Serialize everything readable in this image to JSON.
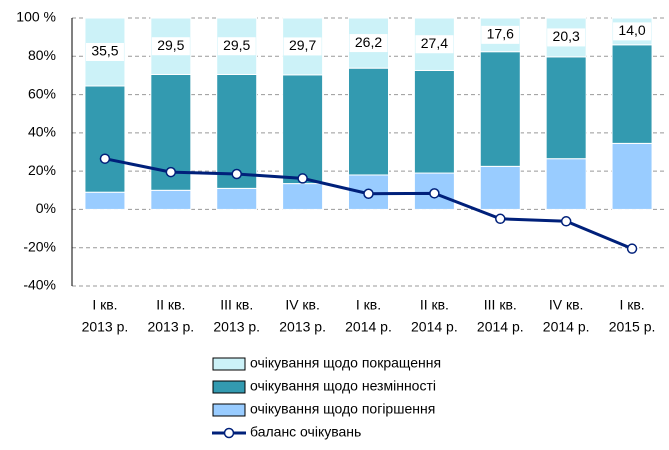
{
  "chart_data": {
    "type": "bar",
    "categories": [
      [
        "I кв.",
        "2013 р."
      ],
      [
        "II кв.",
        "2013 р."
      ],
      [
        "III кв.",
        "2013 р."
      ],
      [
        "IV кв.",
        "2013 р."
      ],
      [
        "I кв.",
        "2014 р."
      ],
      [
        "II кв.",
        "2014 р."
      ],
      [
        "III кв.",
        "2014 р."
      ],
      [
        "IV кв.",
        "2014 р."
      ],
      [
        "I кв.",
        "2015 р."
      ]
    ],
    "series": [
      {
        "name": "очікування щодо погіршення",
        "color": "#99ccff",
        "values": [
          9.0,
          10.0,
          11.0,
          13.5,
          18.0,
          19.0,
          22.5,
          26.5,
          34.5
        ]
      },
      {
        "name": "очікування щодо незмінності",
        "color": "#339ab0",
        "values": [
          55.5,
          60.5,
          59.5,
          56.8,
          55.8,
          53.6,
          59.9,
          53.2,
          51.5
        ]
      },
      {
        "name": "очікування щодо покращення",
        "color": "#ccf2f8",
        "values": [
          35.5,
          29.5,
          29.5,
          29.7,
          26.2,
          27.4,
          17.6,
          20.3,
          14.0
        ],
        "value_labels": [
          "35,5",
          "29,5",
          "29,5",
          "29,7",
          "26,2",
          "27,4",
          "17,6",
          "20,3",
          "14,0"
        ]
      },
      {
        "name": "баланс очікувань",
        "type": "line",
        "color": "#00207a",
        "values": [
          26.5,
          19.5,
          18.5,
          16.2,
          8.2,
          8.4,
          -4.9,
          -6.2,
          -20.5
        ]
      }
    ],
    "ylim": [
      -40,
      100
    ],
    "yticks": [
      {
        "value": -40,
        "label": "-40%"
      },
      {
        "value": -20,
        "label": "-20%"
      },
      {
        "value": 0,
        "label": "0%"
      },
      {
        "value": 20,
        "label": "20%"
      },
      {
        "value": 40,
        "label": "40%"
      },
      {
        "value": 60,
        "label": "60%"
      },
      {
        "value": 80,
        "label": "80%"
      },
      {
        "value": 100,
        "label": "100 %"
      }
    ],
    "grid": true,
    "stacked": true
  }
}
